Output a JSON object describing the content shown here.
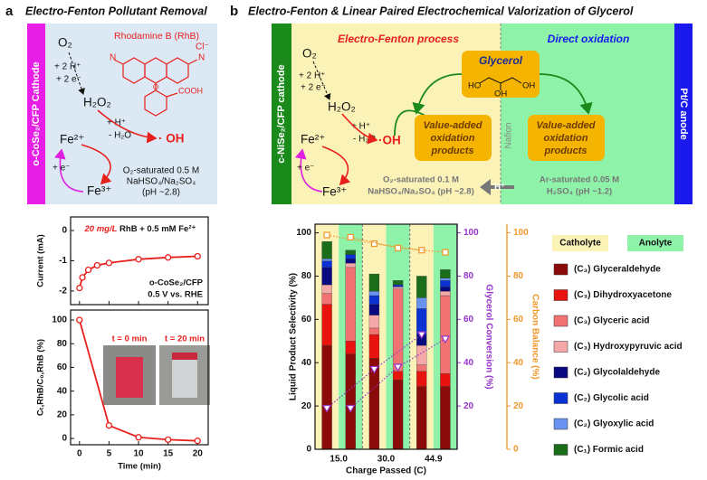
{
  "panel_a": {
    "label": "a",
    "title": "Electro-Fenton Pollutant Removal",
    "electrode": "o-CoSe₂/CFP Cathode",
    "dye": "Rhodamine B (RhB)",
    "dye_labels": [
      "Cl⁻",
      "N",
      "N",
      "O",
      "COOH"
    ],
    "o2": "O₂",
    "reduction": [
      "+ 2 H⁺",
      "+ 2 e⁻"
    ],
    "h2o2": "H₂O₂",
    "fenton": [
      "+ H⁺",
      "- H₂O"
    ],
    "radical": "· OH",
    "fe2": "Fe²⁺",
    "fe3": "Fe³⁺",
    "regen": "+ e⁻",
    "electrolyte": [
      "O₂-saturated 0.5 M",
      "NaHSO₄/Na₂SO₄",
      "(pH ~2.8)"
    ]
  },
  "panel_b": {
    "label": "b",
    "title": "Electro-Fenton & Linear Paired Electrochemical Valorization of Glycerol",
    "cathode": "c-NiSe₂/CFP cathode",
    "anode": "Pt/C anode",
    "cathode_process": "Electro-Fenton process",
    "anode_process": "Direct oxidation",
    "substrate": "Glycerol",
    "substrate_labels": [
      "HO",
      "OH",
      "OH"
    ],
    "product": [
      "Value-added",
      "oxidation",
      "products"
    ],
    "membrane": "Nafion",
    "ion": "H⁺",
    "o2": "O₂",
    "reduction": [
      "+ 2 H⁺",
      "+ 2 e⁻"
    ],
    "h2o2": "H₂O₂",
    "fenton": [
      "+ H⁺",
      "- H₂O"
    ],
    "radical": "·OH",
    "fe2": "Fe²⁺",
    "fe3": "Fe³⁺",
    "regen": "+ e⁻",
    "catholyte_solution": [
      "O₂-saturated 0.1 M",
      "NaHSO₄/Na₂SO₄ (pH ~2.8)"
    ],
    "anolyte_solution": [
      "Ar-saturated 0.05 M",
      "H₂SO₄ (pH ~1.2)"
    ]
  },
  "chart_data": [
    {
      "type": "line",
      "ylabel": "Current (mA)",
      "annotation": [
        "20 mg/L",
        " RhB + 0.5 mM Fe²⁺"
      ],
      "notes": [
        "o-CoSe₂/CFP",
        "0.5 V vs. RHE"
      ],
      "x": [
        0,
        0.5,
        1.5,
        3,
        5,
        10,
        15,
        20
      ],
      "values": [
        -1.9,
        -1.55,
        -1.3,
        -1.15,
        -1.07,
        -0.95,
        -0.89,
        -0.85
      ],
      "color": "#e8201c",
      "xlim": [
        -1.5,
        21.8
      ],
      "ylim": [
        -2.45,
        0.45
      ],
      "yticks": [
        -2,
        -1,
        0
      ]
    },
    {
      "type": "line",
      "xlabel": "Time (min)",
      "ylabel": "Cₜ,RhB/C₀,RhB (%)",
      "insets": [
        "t = 0 min",
        "t = 20 min"
      ],
      "x": [
        0,
        5,
        10,
        15,
        20
      ],
      "values": [
        100,
        11,
        1,
        -1,
        -2
      ],
      "color": "#e8201c",
      "xlim": [
        -1.5,
        21.8
      ],
      "ylim": [
        -5.3,
        108.4
      ],
      "xticks": [
        0,
        5,
        10,
        15,
        20
      ],
      "yticks": [
        0,
        20,
        40,
        60,
        80,
        100
      ]
    },
    {
      "type": "stacked_bar",
      "xlabel": "Charge Passed (C)",
      "ylabel": "Liquid Product Selectivity (%)",
      "y2label": "Glycerol Conversion (%)",
      "y3label": "Carbon Balance (%)",
      "categories": [
        "15.0",
        "30.0",
        "44.9"
      ],
      "groups": [
        {
          "name": "Catholyte",
          "color": "#fbf2b8"
        },
        {
          "name": "Anolyte",
          "color": "#8ef2a8"
        }
      ],
      "series": [
        {
          "name": "(C₃) Glyceraldehyde",
          "color": "#8b0a0a",
          "values": [
            [
              48,
              44
            ],
            [
              42,
              32
            ],
            [
              29,
              29
            ]
          ]
        },
        {
          "name": "(C₃) Dihydroxyacetone",
          "color": "#e8120e",
          "values": [
            [
              19,
              6
            ],
            [
              11,
              4
            ],
            [
              7,
              6
            ]
          ]
        },
        {
          "name": "(C₃) Glyceric acid",
          "color": "#f07272",
          "values": [
            [
              5,
              34
            ],
            [
              3,
              38
            ],
            [
              3,
              36
            ]
          ]
        },
        {
          "name": "(C₃) Hydroxypyruvic acid",
          "color": "#f5a8a8",
          "values": [
            [
              4,
              2
            ],
            [
              6,
              1
            ],
            [
              9,
              2
            ]
          ]
        },
        {
          "name": "(C₂) Glycolaldehyde",
          "color": "#0a0a80",
          "values": [
            [
              8,
              2
            ],
            [
              5,
              0
            ],
            [
              5,
              2
            ]
          ]
        },
        {
          "name": "(C₂) Glycolic acid",
          "color": "#0a32d2",
          "values": [
            [
              3,
              2
            ],
            [
              4,
              1
            ],
            [
              12,
              3
            ]
          ]
        },
        {
          "name": "(C₂) Glyoxylic acid",
          "color": "#6a92f0",
          "values": [
            [
              1,
              0
            ],
            [
              2,
              0
            ],
            [
              5,
              1
            ]
          ]
        },
        {
          "name": "(C₁) Formic acid",
          "color": "#1a6e1a",
          "values": [
            [
              8,
              2
            ],
            [
              8,
              2
            ],
            [
              10,
              4
            ]
          ]
        }
      ],
      "lines": [
        {
          "axis": "y2",
          "color": "#9933cc",
          "marker": "triangle-down",
          "values": [
            [
              19,
              19
            ],
            [
              37,
              38
            ],
            [
              53,
              51
            ]
          ]
        },
        {
          "axis": "y3",
          "color": "#f0962a",
          "marker": "square",
          "values": [
            [
              99,
              98
            ],
            [
              95,
              93
            ],
            [
              92,
              91
            ]
          ]
        }
      ],
      "ylim": [
        0,
        104
      ],
      "y2lim": [
        0,
        104
      ],
      "y3lim": [
        0,
        104
      ],
      "yticks": [
        0,
        20,
        40,
        60,
        80,
        100
      ],
      "y2ticks": [
        20,
        40,
        60,
        80,
        100
      ],
      "y3ticks": [
        0,
        20,
        40,
        60,
        80,
        100
      ]
    }
  ]
}
